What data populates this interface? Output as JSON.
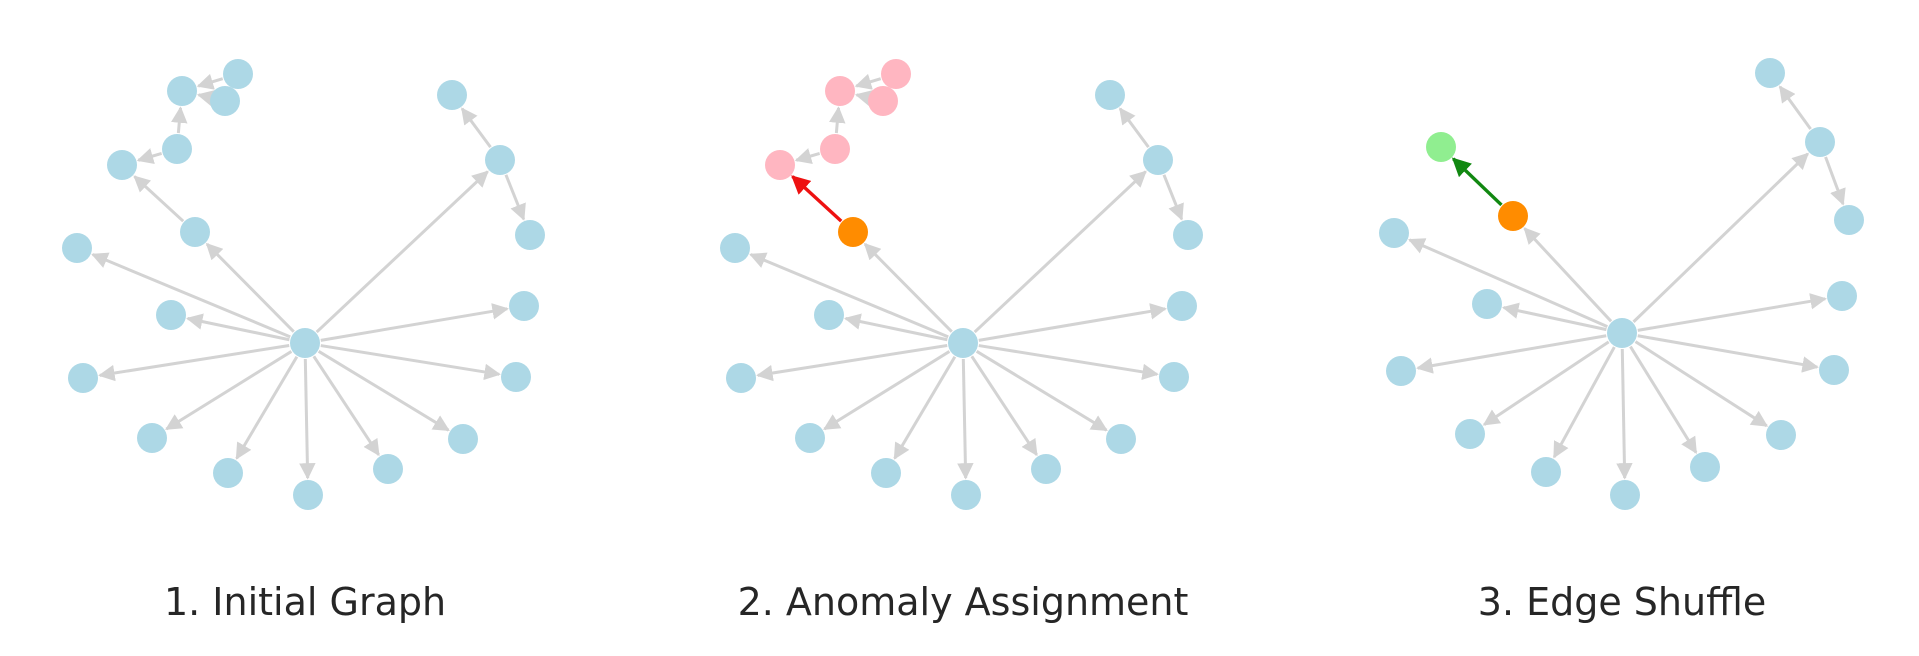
{
  "colors": {
    "default_node": "#add8e6",
    "default_edge": "#d3d3d3",
    "anomaly_source": "#ff8c00",
    "anomaly_target": "#ffb6c1",
    "anomaly_edge": "#ee1111",
    "shuffled_target": "#90ee90",
    "shuffled_edge": "#118811",
    "title_text": "#262626"
  },
  "panels": [
    {
      "title": "1. Initial Graph"
    },
    {
      "title": "2. Anomaly Assignment"
    },
    {
      "title": "3. Edge Shuffle"
    }
  ]
}
